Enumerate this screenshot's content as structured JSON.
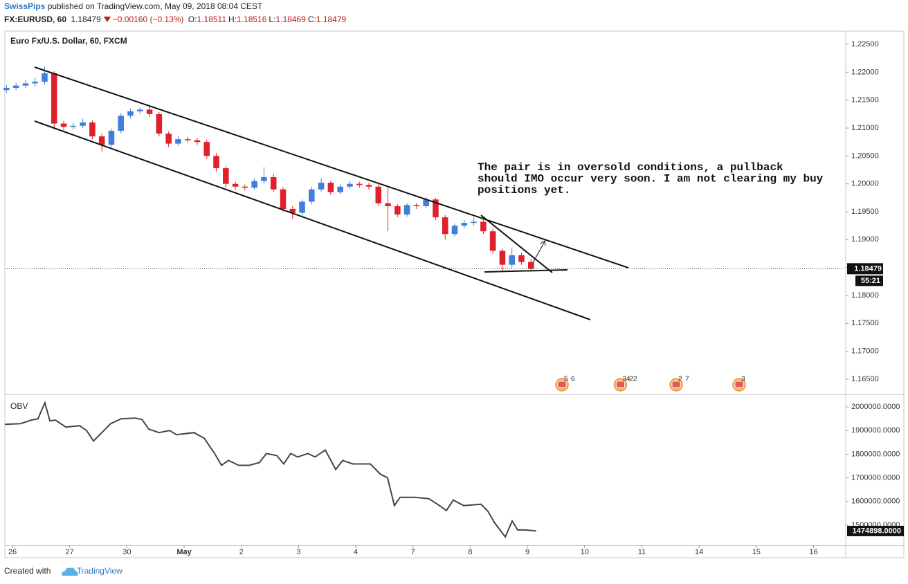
{
  "header": {
    "author": "SwissPips",
    "published": "published on TradingView.com, May 09, 2018 08:04 CEST",
    "symbol": "FX:EURUSD, 60",
    "last": "1.18479",
    "change": "−0.00160 (−0.13%)",
    "ohlc": [
      {
        "key": "O:",
        "value": "1.18511"
      },
      {
        "key": "H:",
        "value": "1.18516"
      },
      {
        "key": "L:",
        "value": "1.18469"
      },
      {
        "key": "C:",
        "value": "1.18479"
      }
    ]
  },
  "chart_data": [
    {
      "type": "candlestick",
      "title": "Euro Fx/U.S. Dollar, 60, FXCM",
      "up_color": "#3f7fd9",
      "down_color": "#e0212b",
      "x": [
        -2.5,
        1.5,
        5.5,
        9.5,
        13.5,
        17.5,
        21.5,
        25.5,
        29.5,
        33.5,
        37.5,
        41.5,
        45.5,
        49.5,
        53.5,
        57.5,
        61.5,
        65.5,
        69.5,
        73.5,
        77.5,
        81.5,
        85.5,
        89.5,
        93.5,
        97.5,
        101.5,
        105.5,
        109.5,
        113.5,
        117.5,
        121.5,
        125.5,
        129.5,
        133.5,
        137.5,
        141.5,
        145.5,
        149.5,
        153.5,
        157.5,
        161.5,
        165.5,
        169.5,
        173.5,
        177.5,
        181.5,
        185.5,
        189.5,
        193.5,
        197.5,
        201.5,
        205.5,
        209.5,
        213.5,
        217.5
      ],
      "open": [
        1.2168,
        1.2172,
        1.2176,
        1.218,
        1.2183,
        1.2198,
        1.2108,
        1.2102,
        1.2104,
        1.211,
        1.2085,
        1.207,
        1.2095,
        1.2122,
        1.213,
        1.2133,
        1.2125,
        1.209,
        1.2072,
        1.208,
        1.2078,
        1.2075,
        1.205,
        1.2028,
        1.2,
        1.1995,
        1.1993,
        1.2005,
        1.2012,
        1.199,
        1.1955,
        1.1948,
        1.1968,
        1.199,
        1.2002,
        1.1985,
        1.1995,
        1.2,
        1.1998,
        1.1995,
        1.1965,
        1.196,
        1.1945,
        1.1962,
        1.196,
        1.1972,
        1.194,
        1.191,
        1.1925,
        1.193,
        1.1932,
        1.1915,
        1.188,
        1.1855,
        1.1872,
        1.186
      ],
      "high": [
        1.2177,
        1.2181,
        1.2186,
        1.219,
        1.221,
        1.2202,
        1.2113,
        1.2109,
        1.2117,
        1.2114,
        1.209,
        1.2099,
        1.2127,
        1.2135,
        1.2137,
        1.214,
        1.2129,
        1.2094,
        1.2085,
        1.2084,
        1.2082,
        1.2079,
        1.2055,
        1.2032,
        1.2004,
        1.1999,
        1.201,
        1.203,
        1.2018,
        1.1994,
        1.196,
        1.1972,
        1.1995,
        1.201,
        1.2006,
        1.2,
        1.2005,
        1.2004,
        1.2002,
        1.1999,
        1.1993,
        1.1964,
        1.1966,
        1.1966,
        1.1977,
        1.1975,
        1.1944,
        1.1929,
        1.1935,
        1.194,
        1.1936,
        1.1919,
        1.1884,
        1.1885,
        1.1876,
        1.1866
      ],
      "low": [
        1.2163,
        1.2168,
        1.2172,
        1.2175,
        1.2178,
        1.2098,
        1.2096,
        1.2098,
        1.21,
        1.208,
        1.2058,
        1.2066,
        1.209,
        1.2117,
        1.2125,
        1.212,
        1.2085,
        1.2066,
        1.2068,
        1.2074,
        1.207,
        1.2045,
        1.2022,
        1.1993,
        1.199,
        1.1988,
        1.1989,
        1.2,
        1.1985,
        1.195,
        1.1937,
        1.1943,
        1.1963,
        1.1986,
        1.198,
        1.1981,
        1.1991,
        1.1993,
        1.199,
        1.196,
        1.1915,
        1.194,
        1.1941,
        1.1955,
        1.1956,
        1.1935,
        1.19,
        1.1906,
        1.192,
        1.1925,
        1.191,
        1.1875,
        1.1843,
        1.185,
        1.1855,
        1.1844
      ],
      "close": [
        1.2172,
        1.2176,
        1.218,
        1.2183,
        1.2198,
        1.2108,
        1.2102,
        1.2104,
        1.211,
        1.2085,
        1.207,
        1.2095,
        1.2122,
        1.213,
        1.2133,
        1.2125,
        1.209,
        1.2072,
        1.208,
        1.2078,
        1.2075,
        1.205,
        1.2028,
        1.2,
        1.1995,
        1.1993,
        1.2005,
        1.2012,
        1.199,
        1.1955,
        1.1948,
        1.1968,
        1.199,
        1.2002,
        1.1985,
        1.1995,
        1.2,
        1.1998,
        1.1995,
        1.1965,
        1.196,
        1.1945,
        1.1962,
        1.196,
        1.1972,
        1.194,
        1.191,
        1.1925,
        1.193,
        1.1932,
        1.1915,
        1.188,
        1.1855,
        1.1872,
        1.186,
        1.18479
      ],
      "xlim": [
        -3.19,
        349.5
      ],
      "ylim": [
        1.16227,
        1.22736
      ],
      "yticks": [
        {
          "value": 1.165,
          "label": "1.16500"
        },
        {
          "value": 1.17,
          "label": "1.17000"
        },
        {
          "value": 1.175,
          "label": "1.17500"
        },
        {
          "value": 1.18,
          "label": "1.18000"
        },
        {
          "value": 1.185,
          "label": "1.18500"
        },
        {
          "value": 1.19,
          "label": "1.19000"
        },
        {
          "value": 1.195,
          "label": "1.19500"
        },
        {
          "value": 1.2,
          "label": "1.20000"
        },
        {
          "value": 1.205,
          "label": "1.20500"
        },
        {
          "value": 1.21,
          "label": "1.21000"
        },
        {
          "value": 1.215,
          "label": "1.21500"
        },
        {
          "value": 1.22,
          "label": "1.22000"
        },
        {
          "value": 1.225,
          "label": "1.22500"
        }
      ],
      "countdown": "55:21",
      "annotation": [
        "The pair is in oversold conditions, a pullback",
        "should IMO occur very soon. I am not clearing my buy",
        "positions yet."
      ],
      "events": [
        {
          "x": 230.5,
          "labels": [
            "5",
            "6"
          ]
        },
        {
          "x": 255,
          "labels": [
            "34",
            "22"
          ]
        },
        {
          "x": 278.4,
          "labels": [
            "2",
            "7"
          ]
        },
        {
          "x": 304.8,
          "labels": [
            "3"
          ]
        }
      ]
    },
    {
      "type": "line",
      "title": "OBV",
      "color": "#444444",
      "x": [
        -3.2,
        3.5,
        7.8,
        10.7,
        13.6,
        15.7,
        18,
        22.4,
        28.2,
        31.1,
        34,
        36.9,
        41.2,
        45.6,
        51.4,
        54.3,
        57.2,
        61.5,
        65.9,
        68.8,
        76.1,
        80.4,
        84.8,
        87.7,
        90.6,
        94.9,
        99.3,
        103.6,
        106.5,
        110.9,
        113.8,
        116.7,
        119.6,
        123.9,
        126.9,
        131.2,
        135.6,
        138.5,
        142.8,
        150.1,
        154.4,
        157.3,
        160.2,
        162.6,
        169,
        174.7,
        179.1,
        182,
        184.9,
        189.3,
        196.5,
        199.4,
        202.3,
        206.7,
        209.6,
        211.9,
        215.4,
        219.7
      ],
      "values": [
        1926500,
        1929400,
        1944100,
        1950000,
        2017600,
        1941200,
        1944100,
        1914700,
        1920600,
        1900000,
        1855900,
        1885300,
        1929400,
        1950000,
        1952900,
        1947100,
        1905900,
        1891200,
        1900000,
        1882400,
        1891200,
        1867600,
        1802900,
        1752900,
        1773500,
        1752900,
        1752900,
        1764700,
        1802900,
        1794100,
        1758800,
        1802900,
        1788200,
        1802900,
        1788200,
        1817600,
        1735300,
        1773500,
        1758800,
        1758800,
        1714700,
        1700000,
        1582400,
        1617600,
        1617600,
        1611800,
        1582400,
        1561800,
        1605900,
        1582400,
        1588200,
        1558800,
        1508800,
        1450000,
        1517600,
        1479400,
        1479400,
        1474898
      ],
      "last_value_label": "1474898.0000",
      "xlim": [
        -3.19,
        349.5
      ],
      "ylim": [
        1414700,
        2050000
      ],
      "yticks": [
        {
          "value": 1500000,
          "label": "1500000.0000"
        },
        {
          "value": 1600000,
          "label": "1600000.0000"
        },
        {
          "value": 1700000,
          "label": "1700000.0000"
        },
        {
          "value": 1800000,
          "label": "1800000.0000"
        },
        {
          "value": 1900000,
          "label": "1900000.0000"
        },
        {
          "value": 2000000,
          "label": "2000000.0000"
        }
      ],
      "xticks": [
        {
          "value": 0,
          "label": "26"
        },
        {
          "value": 24,
          "label": "27"
        },
        {
          "value": 48,
          "label": "30"
        },
        {
          "value": 72,
          "label": "May"
        },
        {
          "value": 96,
          "label": "2"
        },
        {
          "value": 120,
          "label": "3"
        },
        {
          "value": 144,
          "label": "4"
        },
        {
          "value": 168,
          "label": "7"
        },
        {
          "value": 192,
          "label": "8"
        },
        {
          "value": 216,
          "label": "9"
        },
        {
          "value": 240,
          "label": "10"
        },
        {
          "value": 264,
          "label": "11"
        },
        {
          "value": 288,
          "label": "14"
        },
        {
          "value": 312,
          "label": "15"
        },
        {
          "value": 336,
          "label": "16"
        }
      ]
    }
  ],
  "footer": {
    "created": "Created with",
    "brand": "TradingView"
  }
}
